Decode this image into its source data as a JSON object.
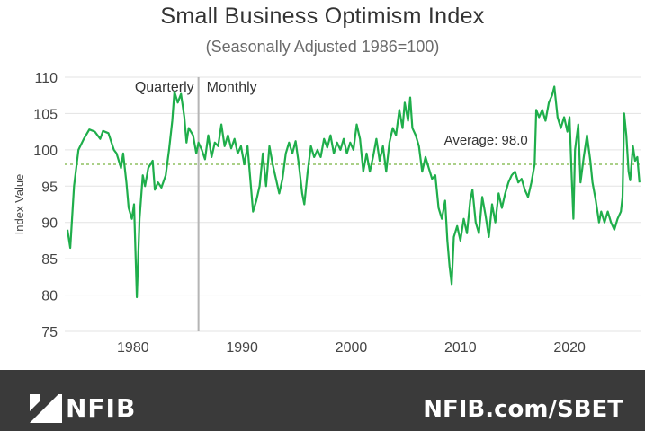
{
  "chart_data": {
    "type": "line",
    "title": "Small Business Optimism Index",
    "subtitle": "(Seasonally Adjusted 1986=100)",
    "ylabel": "Index Value",
    "xlabel": "",
    "ylim": [
      75,
      110
    ],
    "yticks": [
      75,
      80,
      85,
      90,
      95,
      100,
      105,
      110
    ],
    "xlim": [
      1973.75,
      2026.5
    ],
    "xticks": [
      1980,
      1990,
      2000,
      2010,
      2020
    ],
    "grid": "horizontal",
    "series_color": "#1fae4b",
    "divider": {
      "x": 1986.0,
      "left_label": "Quarterly",
      "right_label": "Monthly"
    },
    "average": {
      "value": 98.0,
      "label": "Average: 98.0",
      "color": "#8fc060"
    },
    "series": [
      {
        "points": [
          [
            1974.0,
            89
          ],
          [
            1974.25,
            86.5
          ],
          [
            1974.6,
            95
          ],
          [
            1975.0,
            100
          ],
          [
            1975.5,
            101.5
          ],
          [
            1976.0,
            102.8
          ],
          [
            1976.5,
            102.5
          ],
          [
            1977.0,
            101.5
          ],
          [
            1977.25,
            102.6
          ],
          [
            1977.75,
            102.3
          ],
          [
            1978.25,
            100
          ],
          [
            1978.5,
            99.5
          ],
          [
            1978.9,
            97.5
          ],
          [
            1979.1,
            99.5
          ],
          [
            1979.4,
            95.5
          ],
          [
            1979.6,
            92
          ],
          [
            1979.9,
            90.5
          ],
          [
            1980.1,
            92.5
          ],
          [
            1980.35,
            79.7
          ],
          [
            1980.6,
            90.5
          ],
          [
            1980.9,
            96.5
          ],
          [
            1981.1,
            95
          ],
          [
            1981.4,
            97.5
          ],
          [
            1981.8,
            98.5
          ],
          [
            1982.0,
            94.5
          ],
          [
            1982.3,
            95.5
          ],
          [
            1982.6,
            94.8
          ],
          [
            1983.0,
            96.5
          ],
          [
            1983.3,
            100
          ],
          [
            1983.6,
            104
          ],
          [
            1983.8,
            108
          ],
          [
            1984.1,
            106.5
          ],
          [
            1984.4,
            107.7
          ],
          [
            1984.7,
            104.5
          ],
          [
            1984.9,
            101
          ],
          [
            1985.1,
            103
          ],
          [
            1985.5,
            102
          ],
          [
            1985.8,
            99.5
          ],
          [
            1986.0,
            101
          ],
          [
            1986.3,
            100
          ],
          [
            1986.6,
            98.7
          ],
          [
            1986.9,
            102
          ],
          [
            1987.2,
            99
          ],
          [
            1987.5,
            101
          ],
          [
            1987.8,
            100.5
          ],
          [
            1988.1,
            103.5
          ],
          [
            1988.4,
            100.5
          ],
          [
            1988.7,
            102
          ],
          [
            1989.0,
            100.2
          ],
          [
            1989.3,
            101.5
          ],
          [
            1989.6,
            99.5
          ],
          [
            1989.9,
            100.5
          ],
          [
            1990.2,
            98
          ],
          [
            1990.5,
            100.5
          ],
          [
            1990.8,
            95
          ],
          [
            1991.0,
            91.5
          ],
          [
            1991.3,
            93
          ],
          [
            1991.6,
            95
          ],
          [
            1991.9,
            99.5
          ],
          [
            1992.2,
            95
          ],
          [
            1992.5,
            100.5
          ],
          [
            1992.8,
            98
          ],
          [
            1993.1,
            96
          ],
          [
            1993.4,
            94
          ],
          [
            1993.7,
            96
          ],
          [
            1994.0,
            99.5
          ],
          [
            1994.3,
            101
          ],
          [
            1994.6,
            99.5
          ],
          [
            1994.9,
            101.2
          ],
          [
            1995.2,
            98
          ],
          [
            1995.5,
            94
          ],
          [
            1995.7,
            92.5
          ],
          [
            1996.0,
            97
          ],
          [
            1996.3,
            100.5
          ],
          [
            1996.6,
            99
          ],
          [
            1996.9,
            100
          ],
          [
            1997.2,
            99
          ],
          [
            1997.5,
            101.5
          ],
          [
            1997.8,
            100.3
          ],
          [
            1998.1,
            102
          ],
          [
            1998.4,
            99.5
          ],
          [
            1998.7,
            101
          ],
          [
            1999.0,
            100
          ],
          [
            1999.3,
            101.5
          ],
          [
            1999.6,
            99.5
          ],
          [
            1999.9,
            101
          ],
          [
            2000.2,
            100
          ],
          [
            2000.5,
            103.5
          ],
          [
            2000.8,
            101.5
          ],
          [
            2001.1,
            97
          ],
          [
            2001.4,
            99.5
          ],
          [
            2001.7,
            97
          ],
          [
            2002.0,
            99
          ],
          [
            2002.3,
            101.5
          ],
          [
            2002.6,
            98.5
          ],
          [
            2002.9,
            100.5
          ],
          [
            2003.2,
            97
          ],
          [
            2003.5,
            101
          ],
          [
            2003.8,
            103
          ],
          [
            2004.1,
            102
          ],
          [
            2004.4,
            105.5
          ],
          [
            2004.7,
            103
          ],
          [
            2004.9,
            106.5
          ],
          [
            2005.2,
            104
          ],
          [
            2005.4,
            107.2
          ],
          [
            2005.6,
            103
          ],
          [
            2005.9,
            102
          ],
          [
            2006.2,
            100.5
          ],
          [
            2006.5,
            97
          ],
          [
            2006.8,
            99
          ],
          [
            2007.1,
            97.5
          ],
          [
            2007.4,
            96
          ],
          [
            2007.7,
            96.5
          ],
          [
            2008.0,
            92
          ],
          [
            2008.3,
            90.5
          ],
          [
            2008.6,
            93
          ],
          [
            2008.8,
            87.5
          ],
          [
            2009.0,
            84
          ],
          [
            2009.2,
            81.5
          ],
          [
            2009.4,
            88
          ],
          [
            2009.7,
            89.5
          ],
          [
            2010.0,
            87.5
          ],
          [
            2010.3,
            90.5
          ],
          [
            2010.6,
            88.5
          ],
          [
            2010.9,
            93
          ],
          [
            2011.1,
            94.5
          ],
          [
            2011.4,
            90
          ],
          [
            2011.7,
            88.5
          ],
          [
            2012.0,
            93.5
          ],
          [
            2012.3,
            91
          ],
          [
            2012.6,
            88
          ],
          [
            2012.9,
            92.5
          ],
          [
            2013.2,
            90
          ],
          [
            2013.5,
            94
          ],
          [
            2013.8,
            92
          ],
          [
            2014.1,
            94
          ],
          [
            2014.4,
            95.5
          ],
          [
            2014.7,
            96.5
          ],
          [
            2015.0,
            97
          ],
          [
            2015.3,
            95.5
          ],
          [
            2015.6,
            96
          ],
          [
            2015.9,
            94.5
          ],
          [
            2016.2,
            93.5
          ],
          [
            2016.5,
            95.5
          ],
          [
            2016.8,
            98
          ],
          [
            2016.95,
            105.5
          ],
          [
            2017.2,
            104.5
          ],
          [
            2017.5,
            105.5
          ],
          [
            2017.8,
            104
          ],
          [
            2018.1,
            106.5
          ],
          [
            2018.4,
            107.5
          ],
          [
            2018.6,
            108.7
          ],
          [
            2018.9,
            104.5
          ],
          [
            2019.2,
            103
          ],
          [
            2019.5,
            104.5
          ],
          [
            2019.8,
            102.5
          ],
          [
            2020.0,
            104.5
          ],
          [
            2020.2,
            96
          ],
          [
            2020.35,
            90.5
          ],
          [
            2020.5,
            100
          ],
          [
            2020.8,
            103.5
          ],
          [
            2021.0,
            95.5
          ],
          [
            2021.3,
            99
          ],
          [
            2021.6,
            102
          ],
          [
            2021.9,
            98.5
          ],
          [
            2022.1,
            95.5
          ],
          [
            2022.4,
            93
          ],
          [
            2022.7,
            90
          ],
          [
            2022.9,
            91.5
          ],
          [
            2023.2,
            90
          ],
          [
            2023.5,
            91.5
          ],
          [
            2023.8,
            90
          ],
          [
            2024.1,
            89
          ],
          [
            2024.4,
            90.5
          ],
          [
            2024.7,
            91.5
          ],
          [
            2024.85,
            93.5
          ],
          [
            2025.0,
            105
          ],
          [
            2025.2,
            102
          ],
          [
            2025.4,
            97
          ],
          [
            2025.55,
            95.8
          ],
          [
            2025.8,
            100.5
          ],
          [
            2026.0,
            98.5
          ],
          [
            2026.2,
            99
          ],
          [
            2026.4,
            95.5
          ]
        ]
      }
    ]
  },
  "footer": {
    "logo_text": "NFIB",
    "url": "NFIB.com/SBET",
    "background": "#3a3a3a"
  }
}
